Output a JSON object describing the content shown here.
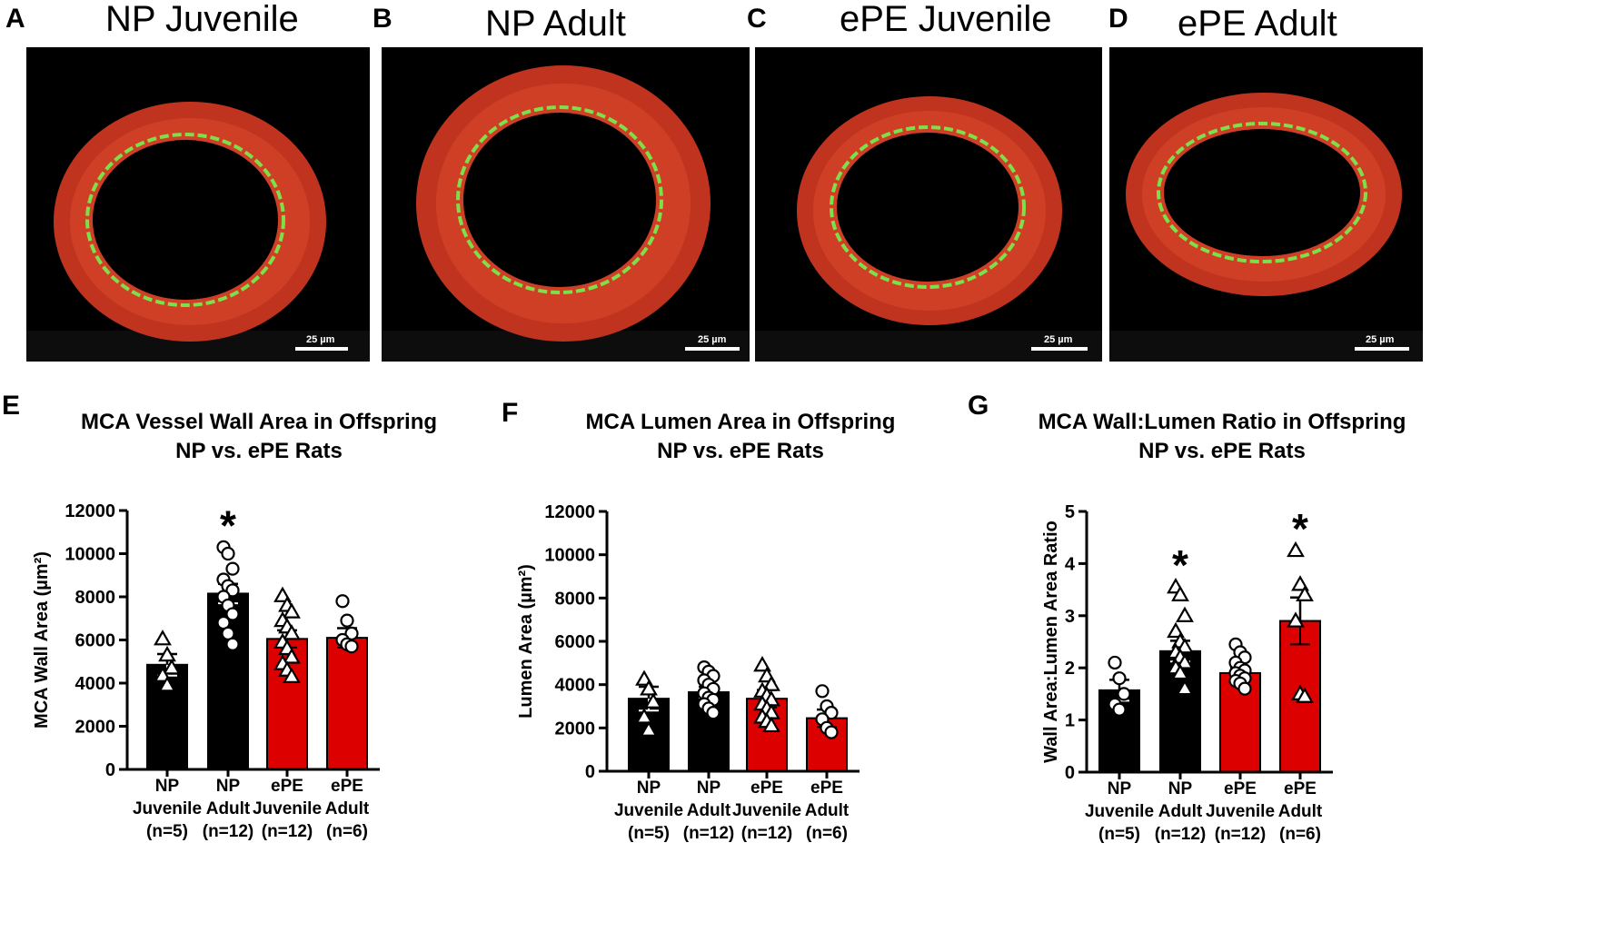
{
  "panels": {
    "A": {
      "label": "A",
      "title": "NP Juvenile",
      "scale": "25 µm"
    },
    "B": {
      "label": "B",
      "title": "NP Adult",
      "scale": "25 µm"
    },
    "C": {
      "label": "C",
      "title": "ePE Juvenile",
      "scale": "25 µm"
    },
    "D": {
      "label": "D",
      "title": "ePE Adult",
      "scale": "25 µm"
    }
  },
  "colors": {
    "np": "#000000",
    "epe": "#dc0000",
    "wall": "#c8321e",
    "elastin": "#7de04a",
    "nuclei": "#5a46d2"
  },
  "categories": [
    {
      "line1": "NP",
      "line2": "Juvenile",
      "n": "(n=5)"
    },
    {
      "line1": "NP",
      "line2": "Adult",
      "n": "(n=12)"
    },
    {
      "line1": "ePE",
      "line2": "Juvenile",
      "n": "(n=12)"
    },
    {
      "line1": "ePE",
      "line2": "Adult",
      "n": "(n=6)"
    }
  ],
  "chart_data": [
    {
      "panel": "E",
      "type": "bar",
      "title_line1": "MCA Vessel Wall Area in Offspring",
      "title_line2": "NP vs. ePE Rats",
      "ylabel": "MCA Wall Area (µm²)",
      "ylim": [
        0,
        12000
      ],
      "yticks": [
        0,
        2000,
        4000,
        6000,
        8000,
        10000,
        12000
      ],
      "ytick_labels": [
        "0",
        "2000",
        "4000",
        "6000",
        "8000",
        "10000",
        "12000"
      ],
      "categories": [
        "NP Juvenile (n=5)",
        "NP Adult (n=12)",
        "ePE Juvenile (n=12)",
        "ePE Adult (n=6)"
      ],
      "values": [
        4850,
        8150,
        6050,
        6100
      ],
      "sem": [
        500,
        450,
        400,
        450
      ],
      "bar_colors": [
        "#000000",
        "#000000",
        "#dc0000",
        "#dc0000"
      ],
      "markers": [
        "triangle",
        "circle",
        "triangle",
        "circle"
      ],
      "points": [
        [
          6050,
          5300,
          4700,
          4350,
          3900
        ],
        [
          10300,
          10000,
          9300,
          8800,
          8500,
          8300,
          8000,
          7600,
          7200,
          6800,
          6300,
          5800
        ],
        [
          8050,
          7600,
          7300,
          6900,
          6600,
          6300,
          5900,
          5600,
          5200,
          4900,
          4600,
          4300
        ],
        [
          7800,
          6900,
          6300,
          6000,
          5800,
          5700
        ]
      ],
      "significance": [
        "",
        "*",
        "",
        ""
      ]
    },
    {
      "panel": "F",
      "type": "bar",
      "title_line1": "MCA Lumen Area in Offspring",
      "title_line2": "NP vs. ePE Rats",
      "ylabel": "Lumen Area (µm²)",
      "ylim": [
        0,
        12000
      ],
      "yticks": [
        0,
        2000,
        4000,
        6000,
        8000,
        10000,
        12000
      ],
      "ytick_labels": [
        "0",
        "2000",
        "4000",
        "6000",
        "8000",
        "10000",
        "12000"
      ],
      "categories": [
        "NP Juvenile (n=5)",
        "NP Adult (n=12)",
        "ePE Juvenile (n=12)",
        "ePE Adult (n=6)"
      ],
      "values": [
        3350,
        3650,
        3350,
        2450
      ],
      "sem": [
        550,
        250,
        400,
        400
      ],
      "bar_colors": [
        "#000000",
        "#000000",
        "#dc0000",
        "#dc0000"
      ],
      "markers": [
        "triangle",
        "circle",
        "triangle",
        "circle"
      ],
      "points": [
        [
          4250,
          3800,
          3200,
          2500,
          1900
        ],
        [
          4800,
          4600,
          4400,
          4200,
          4000,
          3800,
          3600,
          3400,
          3300,
          3100,
          2900,
          2700
        ],
        [
          4900,
          4400,
          4000,
          3700,
          3500,
          3300,
          3100,
          2900,
          2700,
          2500,
          2300,
          2100
        ],
        [
          3700,
          3000,
          2700,
          2400,
          2000,
          1800
        ]
      ],
      "significance": [
        "",
        "",
        "",
        ""
      ]
    },
    {
      "panel": "G",
      "type": "bar",
      "title_line1": "MCA Wall:Lumen Ratio in Offspring",
      "title_line2": "NP vs. ePE Rats",
      "ylabel": "Wall Area:Lumen Area Ratio",
      "ylim": [
        0,
        5
      ],
      "yticks": [
        0,
        1,
        2,
        3,
        4,
        5
      ],
      "ytick_labels": [
        "0",
        "1",
        "2",
        "3",
        "4",
        "5"
      ],
      "categories": [
        "NP Juvenile (n=5)",
        "NP Adult (n=12)",
        "ePE Juvenile (n=12)",
        "ePE Adult (n=6)"
      ],
      "values": [
        1.57,
        2.32,
        1.9,
        2.9
      ],
      "sem": [
        0.2,
        0.2,
        0.1,
        0.45
      ],
      "bar_colors": [
        "#000000",
        "#000000",
        "#dc0000",
        "#dc0000"
      ],
      "markers": [
        "circle",
        "triangle",
        "circle",
        "triangle"
      ],
      "points": [
        [
          2.1,
          1.8,
          1.5,
          1.3,
          1.2
        ],
        [
          3.55,
          3.4,
          3.0,
          2.7,
          2.5,
          2.4,
          2.3,
          2.2,
          2.1,
          2.0,
          1.9,
          1.6
        ],
        [
          2.45,
          2.3,
          2.2,
          2.1,
          2.0,
          1.95,
          1.9,
          1.85,
          1.8,
          1.75,
          1.7,
          1.6
        ],
        [
          4.25,
          3.6,
          3.4,
          2.9,
          1.5,
          1.45
        ]
      ],
      "significance": [
        "",
        "*",
        "",
        "*"
      ]
    }
  ]
}
